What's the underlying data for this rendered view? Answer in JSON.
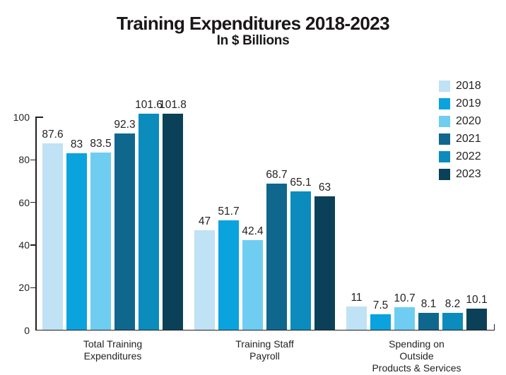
{
  "chart_data": {
    "type": "bar",
    "title": "Training Expenditures 2018-2023",
    "subtitle": "In $ Billions",
    "categories": [
      "Total Training\nExpenditures",
      "Training Staff\nPayroll",
      "Spending on Outside\nProducts & Services"
    ],
    "series": [
      {
        "name": "2018",
        "color": "#bfe2f5",
        "values": [
          87.6,
          47,
          11
        ]
      },
      {
        "name": "2019",
        "color": "#0aa3de",
        "values": [
          83,
          51.7,
          7.5
        ]
      },
      {
        "name": "2020",
        "color": "#6fcdf2",
        "values": [
          83.5,
          42.4,
          10.7
        ]
      },
      {
        "name": "2021",
        "color": "#10678e",
        "values": [
          92.3,
          68.7,
          8.1
        ]
      },
      {
        "name": "2022",
        "color": "#0b8cbd",
        "values": [
          101.6,
          65.1,
          8.2
        ]
      },
      {
        "name": "2023",
        "color": "#0b4158",
        "values": [
          101.8,
          63,
          10.1
        ]
      }
    ],
    "value_labels": [
      "87.6",
      "83",
      "83.5",
      "92.3",
      "101.6",
      "101.8",
      "47",
      "51.7",
      "42.4",
      "68.7",
      "65.1",
      "63",
      "11",
      "7.5",
      "10.7",
      "8.1",
      "8.2",
      "10.1"
    ],
    "ylim": [
      0,
      100
    ],
    "yticks": [
      0,
      20,
      40,
      60,
      80,
      100
    ],
    "xlabel": "",
    "ylabel": "",
    "grid": false,
    "legend_position": "top-right",
    "axis_color": "#231f20",
    "text_color": "#231f20"
  }
}
